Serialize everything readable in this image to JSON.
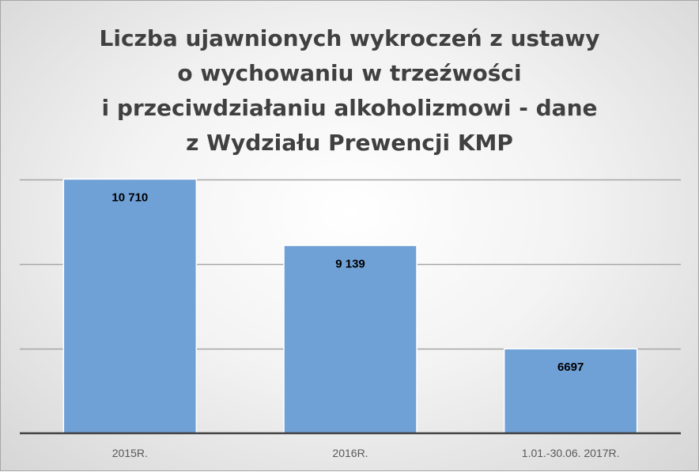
{
  "chart_data": {
    "type": "bar",
    "title_lines": [
      "Liczba ujawnionych wykroczeń z ustawy",
      "o wychowaniu w trzeźwości",
      "i przeciwdziałaniu alkoholizmowi - dane",
      "z Wydziału Prewencji KMP"
    ],
    "categories": [
      "2015R.",
      "2016R.",
      "1.01.-30.06.  2017R."
    ],
    "values": [
      10710,
      9139,
      6697
    ],
    "data_labels": [
      "10 710",
      "9 139",
      "6697"
    ],
    "ylim": [
      4700,
      10700
    ],
    "yticks": [
      6700,
      8700,
      10700
    ],
    "grid": true,
    "y_axis_labels_visible": false,
    "legend": "none",
    "colors": {
      "bar": "#6fa0d6",
      "gridline": "#a6a6a6",
      "axis": "#404040",
      "title": "#404040"
    }
  }
}
